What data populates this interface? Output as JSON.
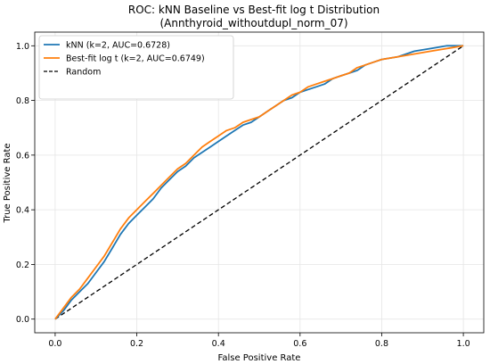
{
  "chart_data": {
    "type": "line",
    "title": "ROC: kNN Baseline vs Best-fit log t Distribution",
    "subtitle": "(Annthyroid_withoutdupl_norm_07)",
    "xlabel": "False Positive Rate",
    "ylabel": "True Positive Rate",
    "xlim": [
      -0.05,
      1.05
    ],
    "ylim": [
      -0.05,
      1.05
    ],
    "xticks": [
      "0.0",
      "0.2",
      "0.4",
      "0.6",
      "0.8",
      "1.0"
    ],
    "yticks": [
      "0.0",
      "0.2",
      "0.4",
      "0.6",
      "0.8",
      "1.0"
    ],
    "grid": true,
    "legend_position": "top-left",
    "series": [
      {
        "name": "kNN (k=2, AUC=0.6728)",
        "color": "#1f77b4",
        "style": "solid",
        "points": [
          [
            0,
            0
          ],
          [
            0.02,
            0.03
          ],
          [
            0.04,
            0.07
          ],
          [
            0.06,
            0.1
          ],
          [
            0.08,
            0.13
          ],
          [
            0.1,
            0.17
          ],
          [
            0.12,
            0.21
          ],
          [
            0.14,
            0.26
          ],
          [
            0.16,
            0.31
          ],
          [
            0.18,
            0.35
          ],
          [
            0.2,
            0.38
          ],
          [
            0.22,
            0.41
          ],
          [
            0.24,
            0.44
          ],
          [
            0.26,
            0.48
          ],
          [
            0.28,
            0.51
          ],
          [
            0.3,
            0.54
          ],
          [
            0.32,
            0.56
          ],
          [
            0.34,
            0.59
          ],
          [
            0.36,
            0.61
          ],
          [
            0.38,
            0.63
          ],
          [
            0.4,
            0.65
          ],
          [
            0.42,
            0.67
          ],
          [
            0.44,
            0.69
          ],
          [
            0.46,
            0.71
          ],
          [
            0.48,
            0.72
          ],
          [
            0.5,
            0.74
          ],
          [
            0.52,
            0.76
          ],
          [
            0.54,
            0.78
          ],
          [
            0.56,
            0.8
          ],
          [
            0.58,
            0.81
          ],
          [
            0.6,
            0.83
          ],
          [
            0.62,
            0.84
          ],
          [
            0.64,
            0.85
          ],
          [
            0.66,
            0.86
          ],
          [
            0.68,
            0.88
          ],
          [
            0.7,
            0.89
          ],
          [
            0.72,
            0.9
          ],
          [
            0.74,
            0.91
          ],
          [
            0.76,
            0.93
          ],
          [
            0.78,
            0.94
          ],
          [
            0.8,
            0.95
          ],
          [
            0.84,
            0.96
          ],
          [
            0.88,
            0.98
          ],
          [
            0.92,
            0.99
          ],
          [
            0.96,
            1.0
          ],
          [
            1.0,
            1.0
          ]
        ]
      },
      {
        "name": "Best-fit log t (k=2, AUC=0.6749)",
        "color": "#ff7f0e",
        "style": "solid",
        "points": [
          [
            0,
            0
          ],
          [
            0.02,
            0.04
          ],
          [
            0.04,
            0.08
          ],
          [
            0.06,
            0.11
          ],
          [
            0.08,
            0.15
          ],
          [
            0.1,
            0.19
          ],
          [
            0.12,
            0.23
          ],
          [
            0.14,
            0.28
          ],
          [
            0.16,
            0.33
          ],
          [
            0.18,
            0.37
          ],
          [
            0.2,
            0.4
          ],
          [
            0.22,
            0.43
          ],
          [
            0.24,
            0.46
          ],
          [
            0.26,
            0.49
          ],
          [
            0.28,
            0.52
          ],
          [
            0.3,
            0.55
          ],
          [
            0.32,
            0.57
          ],
          [
            0.34,
            0.6
          ],
          [
            0.36,
            0.63
          ],
          [
            0.38,
            0.65
          ],
          [
            0.4,
            0.67
          ],
          [
            0.42,
            0.69
          ],
          [
            0.44,
            0.7
          ],
          [
            0.46,
            0.72
          ],
          [
            0.48,
            0.73
          ],
          [
            0.5,
            0.74
          ],
          [
            0.52,
            0.76
          ],
          [
            0.54,
            0.78
          ],
          [
            0.56,
            0.8
          ],
          [
            0.58,
            0.82
          ],
          [
            0.6,
            0.83
          ],
          [
            0.62,
            0.85
          ],
          [
            0.64,
            0.86
          ],
          [
            0.66,
            0.87
          ],
          [
            0.68,
            0.88
          ],
          [
            0.7,
            0.89
          ],
          [
            0.72,
            0.9
          ],
          [
            0.74,
            0.92
          ],
          [
            0.76,
            0.93
          ],
          [
            0.78,
            0.94
          ],
          [
            0.8,
            0.95
          ],
          [
            0.84,
            0.96
          ],
          [
            0.88,
            0.97
          ],
          [
            0.92,
            0.98
          ],
          [
            0.96,
            0.99
          ],
          [
            1.0,
            1.0
          ]
        ]
      },
      {
        "name": "Random",
        "color": "#000000",
        "style": "dashed",
        "points": [
          [
            0,
            0
          ],
          [
            1,
            1
          ]
        ]
      }
    ]
  }
}
